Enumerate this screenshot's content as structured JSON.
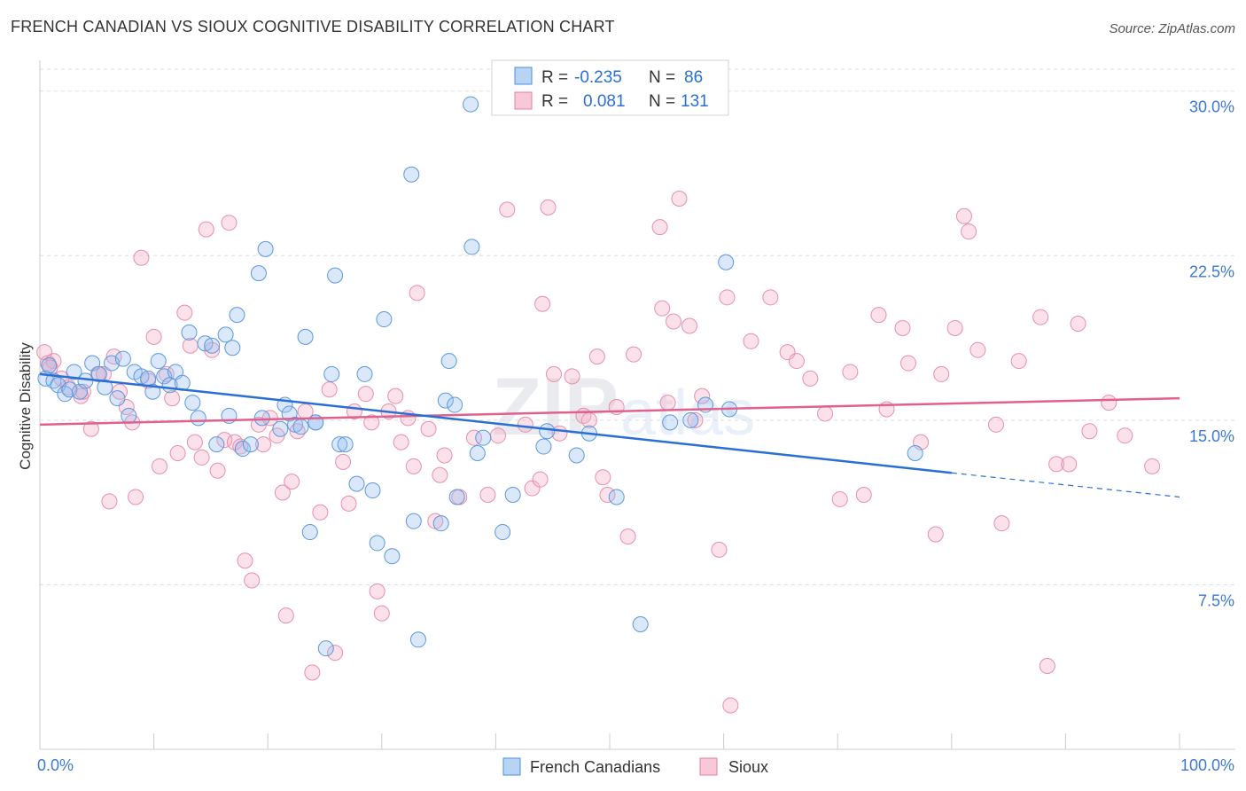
{
  "header": {
    "title": "FRENCH CANADIAN VS SIOUX COGNITIVE DISABILITY CORRELATION CHART",
    "source": "Source: ZipAtlas.com"
  },
  "legend_box": {
    "rows": [
      {
        "r_label": "R =",
        "r_value": "-0.235",
        "n_label": "N =",
        "n_value": "86"
      },
      {
        "r_label": "R =",
        "r_value": "0.081",
        "n_label": "N =",
        "n_value": "131"
      }
    ]
  },
  "bottom_legend": [
    "French Canadians",
    "Sioux"
  ],
  "watermark": {
    "zip": "ZIP",
    "atlas": "atlas"
  },
  "chart_data": {
    "type": "scatter",
    "title": "FRENCH CANADIAN VS SIOUX COGNITIVE DISABILITY CORRELATION CHART",
    "xlabel": "",
    "ylabel": "Cognitive Disability",
    "xlim": [
      0,
      100
    ],
    "ylim": [
      0,
      31
    ],
    "x_tick_labels": [
      "0.0%",
      "100.0%"
    ],
    "y_ticks": [
      7.5,
      15.0,
      22.5,
      30.0
    ],
    "y_tick_labels": [
      "7.5%",
      "15.0%",
      "22.5%",
      "30.0%"
    ],
    "grid": "horizontal dashed",
    "colors": {
      "french_canadians": "#4a8fe0",
      "sioux": "#e87fa0",
      "fc_line": "#2a6fd4",
      "sioux_line": "#e0608e",
      "tick_text": "#3b78d8"
    },
    "series": [
      {
        "name": "French Canadians",
        "r": -0.235,
        "n": 86,
        "trend": {
          "x": [
            0,
            80
          ],
          "y": [
            17.1,
            12.6
          ],
          "dashed_to": [
            100,
            11.5
          ]
        },
        "points": [
          [
            0.5,
            16.9
          ],
          [
            0.8,
            17.5
          ],
          [
            1.2,
            16.8
          ],
          [
            1.6,
            16.6
          ],
          [
            2.2,
            16.2
          ],
          [
            2.6,
            16.4
          ],
          [
            3.0,
            17.2
          ],
          [
            3.5,
            16.3
          ],
          [
            4.0,
            16.8
          ],
          [
            4.6,
            17.6
          ],
          [
            5.2,
            17.1
          ],
          [
            5.7,
            16.5
          ],
          [
            6.3,
            17.6
          ],
          [
            6.8,
            16.0
          ],
          [
            7.3,
            17.8
          ],
          [
            7.8,
            15.2
          ],
          [
            8.3,
            17.2
          ],
          [
            8.9,
            17.0
          ],
          [
            9.5,
            16.9
          ],
          [
            9.9,
            16.3
          ],
          [
            10.4,
            17.7
          ],
          [
            10.9,
            17.0
          ],
          [
            11.4,
            16.6
          ],
          [
            11.9,
            17.2
          ],
          [
            12.5,
            16.7
          ],
          [
            13.1,
            19.0
          ],
          [
            13.4,
            15.8
          ],
          [
            13.9,
            15.1
          ],
          [
            14.5,
            18.5
          ],
          [
            15.1,
            18.4
          ],
          [
            15.5,
            13.9
          ],
          [
            16.3,
            18.9
          ],
          [
            16.6,
            15.2
          ],
          [
            16.9,
            18.3
          ],
          [
            17.3,
            19.8
          ],
          [
            17.8,
            13.7
          ],
          [
            18.5,
            13.9
          ],
          [
            19.2,
            21.7
          ],
          [
            19.5,
            15.1
          ],
          [
            19.8,
            22.8
          ],
          [
            21.1,
            14.6
          ],
          [
            21.5,
            15.7
          ],
          [
            21.9,
            15.3
          ],
          [
            22.4,
            14.8
          ],
          [
            22.9,
            14.7
          ],
          [
            23.3,
            18.8
          ],
          [
            23.7,
            9.9
          ],
          [
            24.2,
            14.9
          ],
          [
            25.1,
            4.6
          ],
          [
            25.6,
            17.1
          ],
          [
            25.9,
            21.6
          ],
          [
            26.3,
            13.9
          ],
          [
            26.8,
            13.9
          ],
          [
            27.8,
            12.1
          ],
          [
            28.5,
            17.1
          ],
          [
            29.2,
            11.8
          ],
          [
            29.6,
            9.4
          ],
          [
            30.2,
            19.6
          ],
          [
            30.9,
            8.8
          ],
          [
            32.6,
            26.2
          ],
          [
            32.8,
            10.4
          ],
          [
            33.2,
            5.0
          ],
          [
            35.2,
            10.3
          ],
          [
            35.6,
            15.9
          ],
          [
            35.9,
            17.7
          ],
          [
            36.6,
            11.5
          ],
          [
            36.4,
            15.7
          ],
          [
            37.9,
            22.9
          ],
          [
            37.8,
            29.4
          ],
          [
            38.4,
            13.5
          ],
          [
            38.9,
            14.2
          ],
          [
            40.6,
            9.9
          ],
          [
            41.5,
            11.6
          ],
          [
            44.2,
            13.8
          ],
          [
            44.5,
            14.5
          ],
          [
            47.1,
            13.4
          ],
          [
            48.2,
            14.4
          ],
          [
            50.6,
            11.5
          ],
          [
            52.7,
            5.7
          ],
          [
            55.3,
            14.9
          ],
          [
            57.1,
            15.0
          ],
          [
            58.4,
            15.7
          ],
          [
            60.2,
            22.2
          ],
          [
            60.5,
            15.5
          ],
          [
            76.8,
            13.5
          ],
          [
            24.2,
            14.9
          ]
        ]
      },
      {
        "name": "Sioux",
        "r": 0.081,
        "n": 131,
        "trend": {
          "x": [
            0,
            100
          ],
          "y": [
            14.8,
            16.0
          ]
        },
        "points": [
          [
            0.4,
            18.1
          ],
          [
            0.7,
            17.6
          ],
          [
            1.2,
            17.7
          ],
          [
            1.9,
            16.9
          ],
          [
            2.5,
            16.5
          ],
          [
            3.6,
            16.1
          ],
          [
            3.8,
            16.3
          ],
          [
            4.5,
            14.6
          ],
          [
            5.1,
            17.1
          ],
          [
            5.6,
            17.1
          ],
          [
            6.1,
            11.3
          ],
          [
            6.5,
            17.9
          ],
          [
            7.0,
            16.3
          ],
          [
            7.6,
            15.6
          ],
          [
            8.1,
            14.9
          ],
          [
            8.4,
            11.5
          ],
          [
            8.9,
            22.4
          ],
          [
            9.5,
            16.8
          ],
          [
            10.0,
            18.8
          ],
          [
            10.5,
            12.9
          ],
          [
            11.1,
            17.1
          ],
          [
            11.6,
            16.0
          ],
          [
            12.1,
            13.5
          ],
          [
            12.7,
            19.9
          ],
          [
            13.2,
            18.4
          ],
          [
            13.6,
            14.0
          ],
          [
            14.2,
            13.3
          ],
          [
            14.6,
            23.7
          ],
          [
            15.1,
            18.2
          ],
          [
            15.6,
            12.7
          ],
          [
            16.2,
            14.1
          ],
          [
            16.6,
            24.0
          ],
          [
            17.1,
            14.0
          ],
          [
            17.6,
            13.8
          ],
          [
            18.0,
            8.6
          ],
          [
            18.6,
            7.7
          ],
          [
            19.2,
            14.8
          ],
          [
            19.6,
            13.9
          ],
          [
            20.2,
            15.1
          ],
          [
            20.8,
            14.3
          ],
          [
            21.3,
            11.7
          ],
          [
            21.6,
            6.1
          ],
          [
            22.1,
            12.2
          ],
          [
            22.6,
            14.5
          ],
          [
            23.3,
            15.4
          ],
          [
            23.9,
            3.5
          ],
          [
            24.6,
            10.8
          ],
          [
            25.4,
            16.4
          ],
          [
            25.9,
            4.4
          ],
          [
            26.6,
            13.1
          ],
          [
            27.1,
            11.2
          ],
          [
            27.6,
            15.4
          ],
          [
            28.6,
            16.2
          ],
          [
            29.1,
            14.9
          ],
          [
            29.6,
            7.2
          ],
          [
            30.0,
            6.2
          ],
          [
            30.6,
            15.4
          ],
          [
            31.2,
            16.1
          ],
          [
            31.7,
            14.0
          ],
          [
            32.3,
            15.1
          ],
          [
            32.8,
            12.9
          ],
          [
            33.1,
            20.8
          ],
          [
            34.1,
            14.6
          ],
          [
            34.7,
            10.4
          ],
          [
            35.1,
            12.5
          ],
          [
            35.5,
            13.4
          ],
          [
            36.8,
            11.5
          ],
          [
            38.1,
            14.2
          ],
          [
            39.3,
            11.6
          ],
          [
            40.2,
            14.3
          ],
          [
            41.0,
            24.6
          ],
          [
            42.6,
            14.8
          ],
          [
            43.2,
            11.9
          ],
          [
            43.9,
            12.3
          ],
          [
            44.1,
            20.3
          ],
          [
            44.6,
            24.7
          ],
          [
            45.1,
            17.1
          ],
          [
            45.6,
            14.4
          ],
          [
            46.7,
            17.0
          ],
          [
            47.7,
            15.2
          ],
          [
            48.2,
            15.0
          ],
          [
            48.9,
            17.9
          ],
          [
            49.4,
            12.4
          ],
          [
            49.8,
            11.6
          ],
          [
            50.6,
            15.6
          ],
          [
            51.6,
            9.7
          ],
          [
            52.1,
            18.0
          ],
          [
            54.4,
            23.8
          ],
          [
            54.6,
            20.1
          ],
          [
            55.1,
            15.8
          ],
          [
            55.6,
            19.5
          ],
          [
            56.1,
            25.1
          ],
          [
            57.0,
            19.3
          ],
          [
            57.5,
            15.0
          ],
          [
            58.1,
            16.1
          ],
          [
            59.6,
            9.1
          ],
          [
            60.3,
            20.6
          ],
          [
            60.6,
            2.0
          ],
          [
            62.4,
            18.6
          ],
          [
            64.1,
            20.6
          ],
          [
            65.6,
            18.1
          ],
          [
            66.4,
            17.7
          ],
          [
            67.6,
            16.9
          ],
          [
            68.9,
            15.3
          ],
          [
            70.2,
            11.4
          ],
          [
            71.1,
            17.2
          ],
          [
            72.3,
            11.6
          ],
          [
            73.6,
            19.8
          ],
          [
            74.3,
            15.5
          ],
          [
            75.7,
            19.2
          ],
          [
            76.2,
            17.6
          ],
          [
            77.3,
            14.0
          ],
          [
            78.6,
            9.8
          ],
          [
            79.1,
            17.1
          ],
          [
            80.3,
            19.2
          ],
          [
            81.1,
            24.3
          ],
          [
            81.5,
            23.6
          ],
          [
            82.3,
            18.2
          ],
          [
            83.9,
            14.8
          ],
          [
            84.4,
            10.3
          ],
          [
            85.9,
            17.7
          ],
          [
            87.8,
            19.7
          ],
          [
            88.4,
            3.8
          ],
          [
            89.2,
            13.0
          ],
          [
            90.3,
            13.0
          ],
          [
            91.1,
            19.4
          ],
          [
            92.1,
            14.5
          ],
          [
            93.8,
            15.8
          ],
          [
            95.2,
            14.3
          ],
          [
            97.6,
            12.9
          ],
          [
            0.9,
            17.4
          ]
        ]
      }
    ]
  }
}
